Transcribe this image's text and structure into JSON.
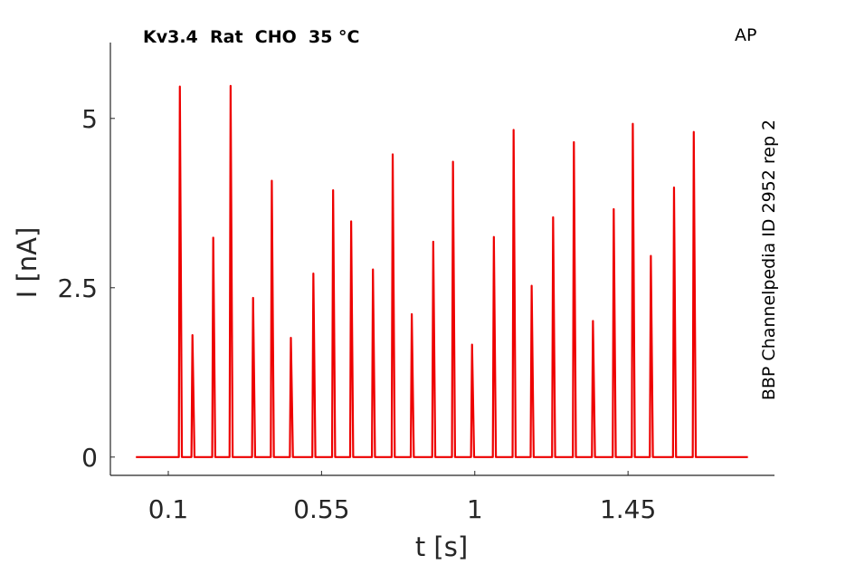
{
  "chart_data": {
    "type": "line",
    "title": "Kv3.4  Rat  CHO  35 °C",
    "annotation": "AP",
    "side_label": "BBP Channelpedia ID 2952 rep 2",
    "x_label": "t [s]",
    "y_label": "I [nA]",
    "xlim": [
      -0.07,
      1.88
    ],
    "ylim": [
      -0.27,
      6.12
    ],
    "xticks": [
      0.1,
      0.55,
      1,
      1.45
    ],
    "yticks": [
      0,
      2.5,
      5
    ],
    "grid": false,
    "series": [
      {
        "color": "#ee0000",
        "x": [
          0.005,
          0.131,
          0.134,
          0.14,
          0.168,
          0.171,
          0.177,
          0.229,
          0.232,
          0.238,
          0.28,
          0.283,
          0.289,
          0.346,
          0.349,
          0.355,
          0.401,
          0.404,
          0.41,
          0.457,
          0.46,
          0.466,
          0.523,
          0.526,
          0.532,
          0.581,
          0.584,
          0.59,
          0.634,
          0.637,
          0.643,
          0.698,
          0.701,
          0.707,
          0.756,
          0.759,
          0.765,
          0.812,
          0.815,
          0.821,
          0.875,
          0.878,
          0.884,
          0.933,
          0.936,
          0.942,
          0.989,
          0.992,
          0.998,
          1.053,
          1.056,
          1.062,
          1.111,
          1.114,
          1.12,
          1.164,
          1.167,
          1.173,
          1.227,
          1.23,
          1.236,
          1.288,
          1.291,
          1.297,
          1.344,
          1.347,
          1.353,
          1.405,
          1.408,
          1.414,
          1.461,
          1.464,
          1.47,
          1.514,
          1.517,
          1.523,
          1.582,
          1.585,
          1.591,
          1.64,
          1.643,
          1.649,
          1.802
        ],
        "values": [
          0,
          0,
          5.47,
          0,
          0,
          1.8,
          0,
          0,
          3.24,
          0,
          0,
          5.48,
          0,
          0,
          2.35,
          0,
          0,
          4.08,
          0,
          0,
          1.76,
          0,
          0,
          2.71,
          0,
          0,
          3.94,
          0,
          0,
          3.48,
          0,
          0,
          2.77,
          0,
          0,
          4.47,
          0,
          0,
          2.11,
          0,
          0,
          3.18,
          0,
          0,
          4.36,
          0,
          0,
          1.66,
          0,
          0,
          3.25,
          0,
          0,
          4.83,
          0,
          0,
          2.53,
          0,
          0,
          3.54,
          0,
          0,
          4.65,
          0,
          0,
          2.01,
          0,
          0,
          3.66,
          0,
          0,
          4.92,
          0,
          0,
          2.97,
          0,
          0,
          3.98,
          0,
          0,
          4.8,
          0,
          0
        ]
      }
    ]
  }
}
